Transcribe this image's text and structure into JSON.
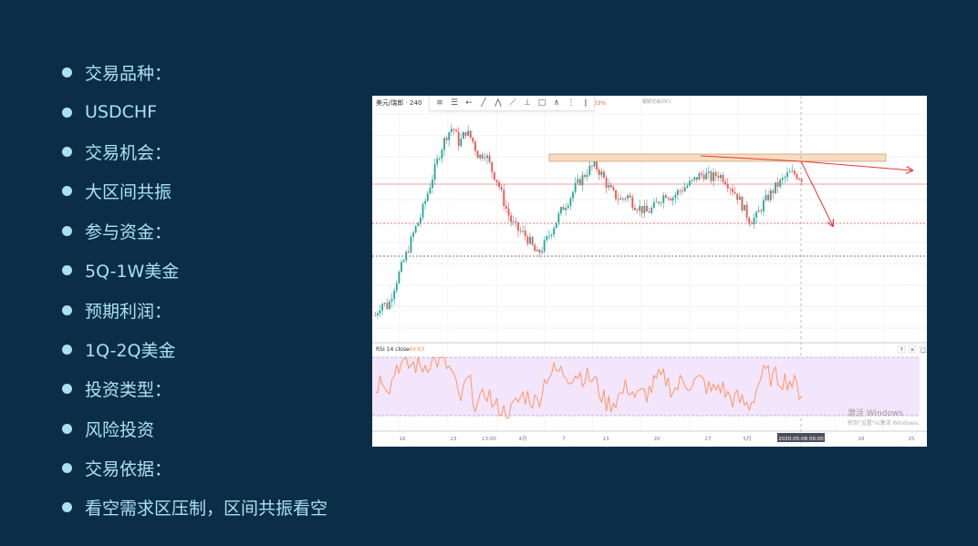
{
  "bullets": [
    "交易品种：",
    "USDCHF",
    "交易机会：",
    "大区间共振",
    "参与资金：",
    "5Q-1W美金",
    "预期利润：",
    "1Q-2Q美金",
    "投资类型：",
    "风险投资",
    "交易依据：",
    "看空需求区压制，区间共振看空"
  ],
  "chart": {
    "symbol": "美元/瑞郎 · 240",
    "change": "0.03%",
    "top_center": "跟踪交易(DC)",
    "rsi_label": "RSI 14 close",
    "rsi_value": "49.63",
    "watermark_line1": "激活 Windows",
    "watermark_line2": "转到\"设置\"以激活 Windows。",
    "x_labels": [
      "16",
      "23",
      "13:00",
      "4月",
      "7",
      "13",
      "20",
      "27",
      "5月",
      "2020-05-08  09:00",
      "18",
      "25"
    ],
    "colors": {
      "up": "#26a69a",
      "down": "#ef5350",
      "rsi": "#ff9055",
      "zone_fill": "#f8dcc0",
      "arrow": "#e53935"
    }
  },
  "chart_data": {
    "type": "candlestick",
    "title": "美元/瑞郎 · 240",
    "x_ticks": [
      "16",
      "23",
      "13:00",
      "4月",
      "7",
      "13",
      "20",
      "27",
      "5月",
      "2020-05-08  09:00",
      "18",
      "25"
    ],
    "close_relative": [
      0.06,
      0.12,
      0.1,
      0.2,
      0.28,
      0.36,
      0.45,
      0.52,
      0.62,
      0.72,
      0.82,
      0.9,
      0.94,
      0.86,
      0.92,
      0.88,
      0.8,
      0.82,
      0.74,
      0.68,
      0.58,
      0.5,
      0.46,
      0.44,
      0.4,
      0.34,
      0.38,
      0.44,
      0.5,
      0.56,
      0.6,
      0.66,
      0.7,
      0.74,
      0.76,
      0.72,
      0.66,
      0.62,
      0.6,
      0.62,
      0.58,
      0.56,
      0.54,
      0.56,
      0.6,
      0.63,
      0.61,
      0.64,
      0.66,
      0.68,
      0.71,
      0.72,
      0.7,
      0.72,
      0.7,
      0.66,
      0.62,
      0.56,
      0.5,
      0.52,
      0.58,
      0.62,
      0.66,
      0.69,
      0.72,
      0.72,
      0.7
    ]
  }
}
